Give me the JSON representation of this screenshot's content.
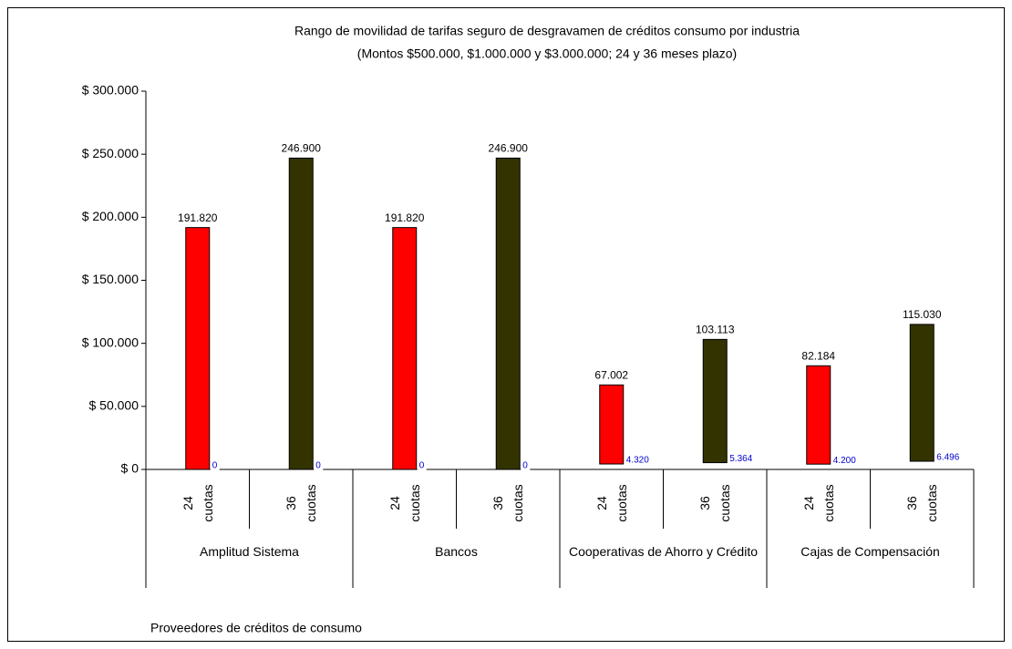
{
  "chart_data": {
    "type": "floating-bar",
    "title": "Rango de movilidad de tarifas seguro de desgravamen de créditos consumo por industria",
    "subtitle": "(Montos $500.000, $1.000.000 y $3.000.000; 24 y 36 meses plazo)",
    "x_label": "Proveedores de créditos de consumo",
    "groups": [
      "Amplitud Sistema",
      "Bancos",
      "Cooperativas de Ahorro y Crédito",
      "Cajas de Compensación"
    ],
    "categories": [
      "24 cuotas",
      "36 cuotas",
      "24 cuotas",
      "36 cuotas",
      "24 cuotas",
      "36 cuotas",
      "24 cuotas",
      "36 cuotas"
    ],
    "high": [
      191820,
      246900,
      191820,
      246900,
      67002,
      103113,
      82184,
      115030
    ],
    "high_labels": [
      "191.820",
      "246.900",
      "191.820",
      "246.900",
      "67.002",
      "103.113",
      "82.184",
      "115.030"
    ],
    "low": [
      0,
      0,
      0,
      0,
      4320,
      5364,
      4200,
      6496
    ],
    "low_labels": [
      "0",
      "0",
      "0",
      "0",
      "4.320",
      "5.364",
      "4.200",
      "6.496"
    ],
    "colors": [
      "#ff0000",
      "#333300",
      "#ff0000",
      "#333300",
      "#ff0000",
      "#333300",
      "#ff0000",
      "#333300"
    ],
    "ylim": [
      0,
      300000
    ],
    "yticks": [
      {
        "value": 0,
        "label": "$ 0"
      },
      {
        "value": 50000,
        "label": "$ 50.000"
      },
      {
        "value": 100000,
        "label": "$ 100.000"
      },
      {
        "value": 150000,
        "label": "$ 150.000"
      },
      {
        "value": 200000,
        "label": "$ 200.000"
      },
      {
        "value": 250000,
        "label": "$ 250.000"
      },
      {
        "value": 300000,
        "label": "$ 300.000"
      }
    ]
  }
}
